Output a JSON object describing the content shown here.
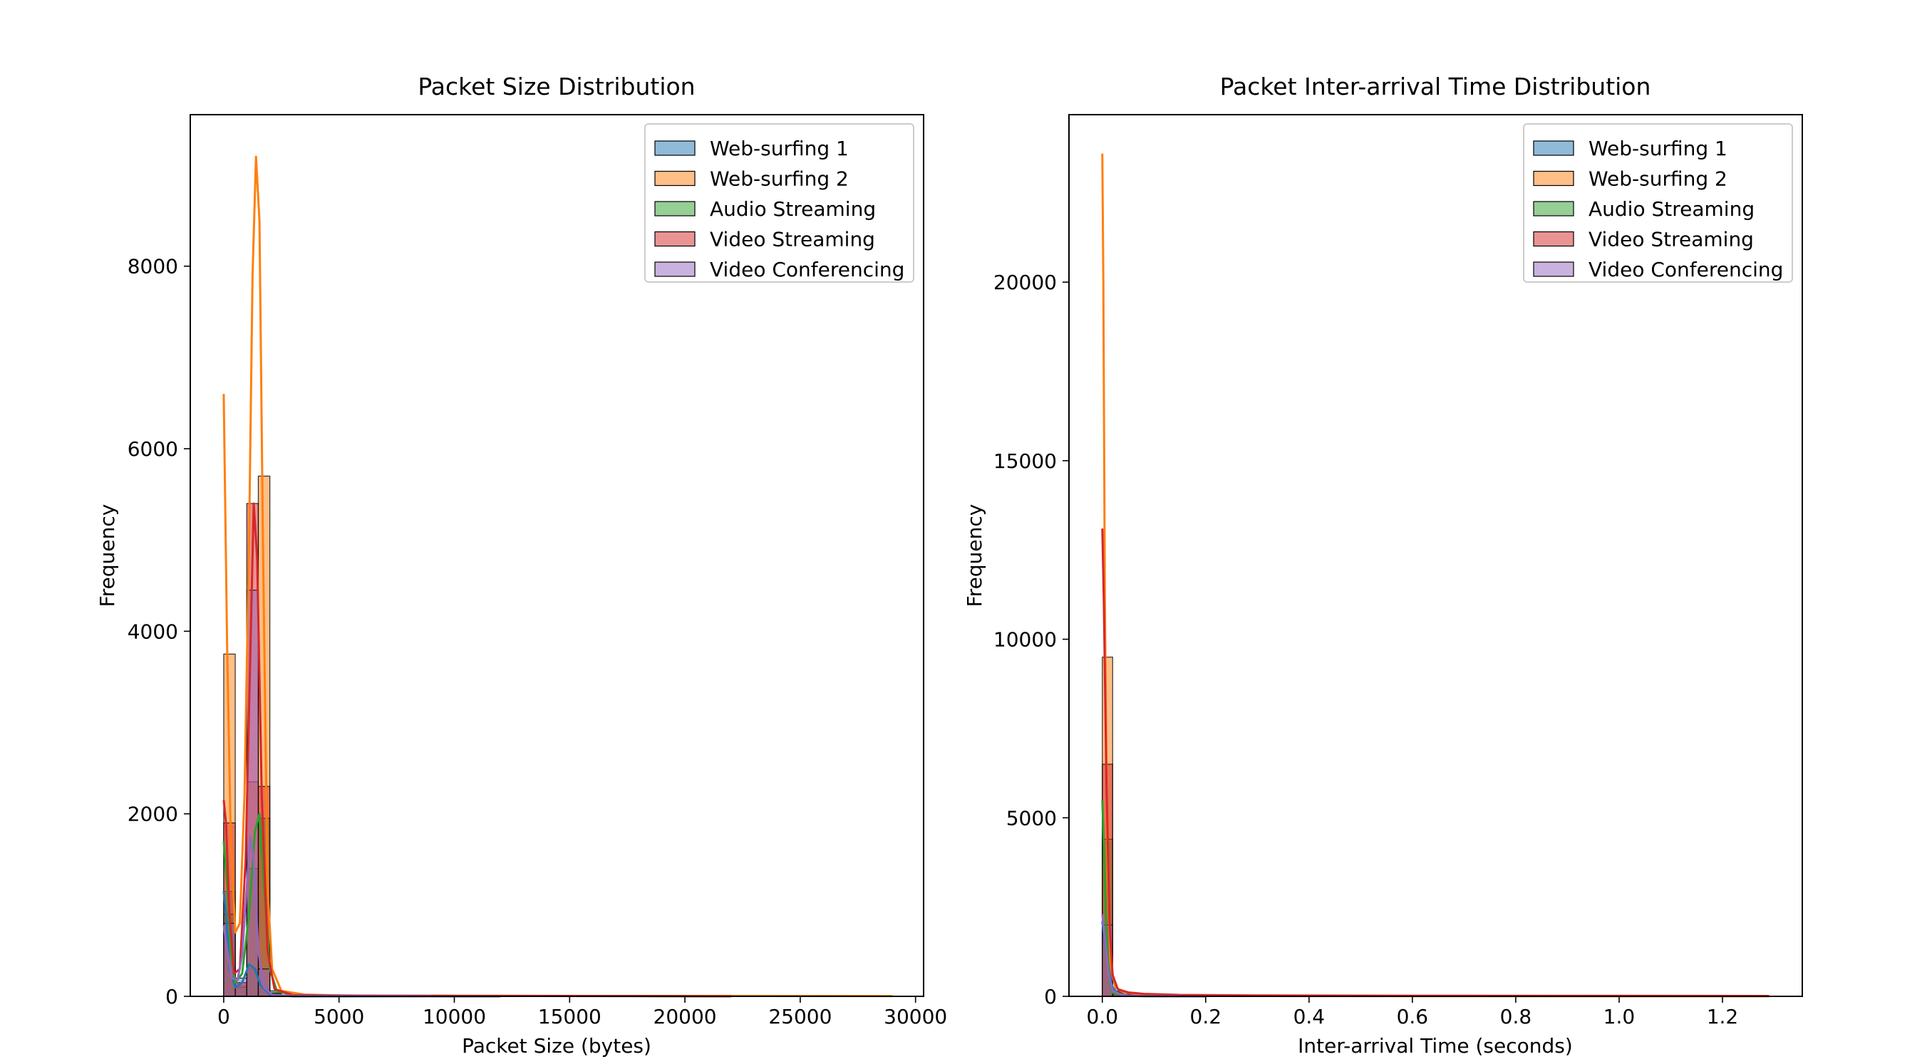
{
  "chart_data": [
    {
      "type": "histogram",
      "title": "Packet Size Distribution",
      "xlabel": "Packet Size (bytes)",
      "ylabel": "Frequency",
      "xlim": [
        -1450,
        30350
      ],
      "ylim": [
        0,
        9660
      ],
      "xticks": [
        0,
        5000,
        10000,
        15000,
        20000,
        25000,
        30000
      ],
      "yticks": [
        0,
        2000,
        4000,
        6000,
        8000
      ],
      "legend_position": "upper right",
      "series": [
        {
          "name": "Web-surfing 1",
          "color": "#1f77b4",
          "bars": [
            [
              0,
              500,
              1150
            ],
            [
              500,
              1000,
              120
            ],
            [
              1000,
              1500,
              300
            ],
            [
              1500,
              2000,
              80
            ]
          ],
          "kde": [
            [
              0,
              1150
            ],
            [
              100,
              900
            ],
            [
              250,
              300
            ],
            [
              500,
              100
            ],
            [
              800,
              150
            ],
            [
              1100,
              350
            ],
            [
              1350,
              300
            ],
            [
              1600,
              120
            ],
            [
              2000,
              20
            ],
            [
              3000,
              0
            ],
            [
              12000,
              0
            ]
          ]
        },
        {
          "name": "Web-surfing 2",
          "color": "#ff7f0e",
          "bars": [
            [
              0,
              500,
              3750
            ],
            [
              500,
              1000,
              150
            ],
            [
              1000,
              1500,
              2350
            ],
            [
              1500,
              2000,
              5700
            ],
            [
              2000,
              2500,
              40
            ],
            [
              2500,
              3000,
              15
            ],
            [
              4000,
              4500,
              8
            ],
            [
              10000,
              10500,
              5
            ],
            [
              20000,
              20500,
              4
            ],
            [
              28500,
              29000,
              3
            ]
          ],
          "kde": [
            [
              0,
              6600
            ],
            [
              150,
              3800
            ],
            [
              300,
              1800
            ],
            [
              500,
              700
            ],
            [
              700,
              800
            ],
            [
              900,
              2200
            ],
            [
              1100,
              5000
            ],
            [
              1250,
              7900
            ],
            [
              1400,
              9200
            ],
            [
              1550,
              8500
            ],
            [
              1700,
              5000
            ],
            [
              1900,
              1200
            ],
            [
              2100,
              300
            ],
            [
              2500,
              60
            ],
            [
              3500,
              20
            ],
            [
              5000,
              10
            ],
            [
              10000,
              6
            ],
            [
              15000,
              5
            ],
            [
              20000,
              5
            ],
            [
              25000,
              4
            ],
            [
              29000,
              3
            ]
          ]
        },
        {
          "name": "Audio Streaming",
          "color": "#2ca02c",
          "bars": [
            [
              0,
              500,
              900
            ],
            [
              500,
              1000,
              100
            ],
            [
              1000,
              1500,
              1400
            ],
            [
              1500,
              2000,
              1950
            ],
            [
              2000,
              2500,
              60
            ]
          ],
          "kde": [
            [
              0,
              1700
            ],
            [
              150,
              1200
            ],
            [
              300,
              500
            ],
            [
              500,
              150
            ],
            [
              800,
              250
            ],
            [
              1100,
              900
            ],
            [
              1350,
              1800
            ],
            [
              1550,
              2000
            ],
            [
              1750,
              1200
            ],
            [
              2000,
              300
            ],
            [
              2300,
              60
            ],
            [
              3000,
              10
            ],
            [
              8000,
              5
            ],
            [
              13000,
              5
            ],
            [
              18000,
              3
            ],
            [
              22000,
              0
            ]
          ]
        },
        {
          "name": "Video Streaming",
          "color": "#d62728",
          "bars": [
            [
              0,
              500,
              1900
            ],
            [
              500,
              1000,
              150
            ],
            [
              1000,
              1500,
              5400
            ],
            [
              1500,
              2000,
              2300
            ],
            [
              2000,
              2500,
              30
            ]
          ],
          "kde": [
            [
              0,
              2150
            ],
            [
              100,
              1900
            ],
            [
              250,
              900
            ],
            [
              450,
              250
            ],
            [
              700,
              300
            ],
            [
              950,
              1500
            ],
            [
              1150,
              3700
            ],
            [
              1300,
              5400
            ],
            [
              1450,
              4800
            ],
            [
              1650,
              2200
            ],
            [
              1900,
              500
            ],
            [
              2200,
              80
            ],
            [
              3000,
              15
            ],
            [
              6000,
              8
            ],
            [
              12000,
              5
            ],
            [
              17000,
              3
            ],
            [
              22000,
              0
            ]
          ]
        },
        {
          "name": "Video Conferencing",
          "color": "#9467bd",
          "bars": [
            [
              0,
              500,
              800
            ],
            [
              500,
              1000,
              200
            ],
            [
              1000,
              1500,
              4450
            ],
            [
              1500,
              2000,
              300
            ]
          ],
          "kde": [
            [
              0,
              780
            ],
            [
              150,
              500
            ],
            [
              350,
              200
            ],
            [
              600,
              180
            ],
            [
              800,
              450
            ],
            [
              1000,
              1200
            ],
            [
              1150,
              1750
            ],
            [
              1300,
              1500
            ],
            [
              1500,
              500
            ],
            [
              1750,
              100
            ],
            [
              2100,
              15
            ],
            [
              3000,
              5
            ],
            [
              9000,
              0
            ]
          ]
        }
      ]
    },
    {
      "type": "histogram",
      "title": "Packet Inter-arrival Time Distribution",
      "xlabel": "Inter-arrival Time (seconds)",
      "ylabel": "Frequency",
      "xlim": [
        -0.0645,
        1.3545
      ],
      "ylim": [
        0,
        24690
      ],
      "xticks": [
        0.0,
        0.2,
        0.4,
        0.6,
        0.8,
        1.0,
        1.2
      ],
      "yticks": [
        0,
        5000,
        10000,
        15000,
        20000
      ],
      "legend_position": "upper right",
      "series": [
        {
          "name": "Web-surfing 1",
          "color": "#1f77b4",
          "bars": [
            [
              0,
              0.02,
              1900
            ],
            [
              0.02,
              0.04,
              100
            ],
            [
              0.04,
              0.06,
              30
            ]
          ],
          "kde": [
            [
              0,
              2100
            ],
            [
              0.005,
              1500
            ],
            [
              0.012,
              700
            ],
            [
              0.02,
              250
            ],
            [
              0.03,
              80
            ],
            [
              0.05,
              20
            ],
            [
              0.1,
              5
            ],
            [
              0.2,
              0
            ]
          ]
        },
        {
          "name": "Web-surfing 2",
          "color": "#ff7f0e",
          "bars": [
            [
              0,
              0.02,
              9500
            ],
            [
              0.02,
              0.04,
              150
            ],
            [
              0.04,
              0.06,
              60
            ],
            [
              0.06,
              0.08,
              30
            ],
            [
              0.08,
              0.1,
              15
            ]
          ],
          "kde": [
            [
              0,
              23600
            ],
            [
              0.002,
              20000
            ],
            [
              0.005,
              11000
            ],
            [
              0.01,
              3500
            ],
            [
              0.016,
              900
            ],
            [
              0.025,
              250
            ],
            [
              0.04,
              120
            ],
            [
              0.07,
              60
            ],
            [
              0.1,
              30
            ],
            [
              0.2,
              15
            ],
            [
              0.4,
              8
            ],
            [
              0.8,
              5
            ],
            [
              1.29,
              2
            ]
          ]
        },
        {
          "name": "Audio Streaming",
          "color": "#2ca02c",
          "bars": [
            [
              0,
              0.02,
              4400
            ],
            [
              0.02,
              0.04,
              80
            ]
          ],
          "kde": [
            [
              0,
              5500
            ],
            [
              0.003,
              4200
            ],
            [
              0.008,
              1800
            ],
            [
              0.014,
              400
            ],
            [
              0.02,
              100
            ],
            [
              0.04,
              20
            ],
            [
              0.08,
              5
            ],
            [
              0.15,
              0
            ]
          ]
        },
        {
          "name": "Video Streaming",
          "color": "#d62728",
          "bars": [
            [
              0,
              0.02,
              6500
            ],
            [
              0.02,
              0.04,
              120
            ],
            [
              0.04,
              0.06,
              50
            ],
            [
              0.06,
              0.08,
              25
            ],
            [
              0.08,
              0.1,
              15
            ]
          ],
          "kde": [
            [
              0,
              13100
            ],
            [
              0.003,
              11000
            ],
            [
              0.008,
              6000
            ],
            [
              0.014,
              2000
            ],
            [
              0.02,
              600
            ],
            [
              0.03,
              200
            ],
            [
              0.05,
              110
            ],
            [
              0.08,
              70
            ],
            [
              0.15,
              40
            ],
            [
              0.3,
              25
            ],
            [
              0.6,
              18
            ],
            [
              1.0,
              15
            ],
            [
              1.29,
              10
            ]
          ]
        },
        {
          "name": "Video Conferencing",
          "color": "#9467bd",
          "bars": [
            [
              0,
              0.02,
              2000
            ],
            [
              0.02,
              0.04,
              60
            ]
          ],
          "kde": [
            [
              0,
              2300
            ],
            [
              0.005,
              1600
            ],
            [
              0.012,
              600
            ],
            [
              0.02,
              150
            ],
            [
              0.04,
              30
            ],
            [
              0.08,
              5
            ],
            [
              0.15,
              0
            ]
          ]
        }
      ]
    }
  ]
}
